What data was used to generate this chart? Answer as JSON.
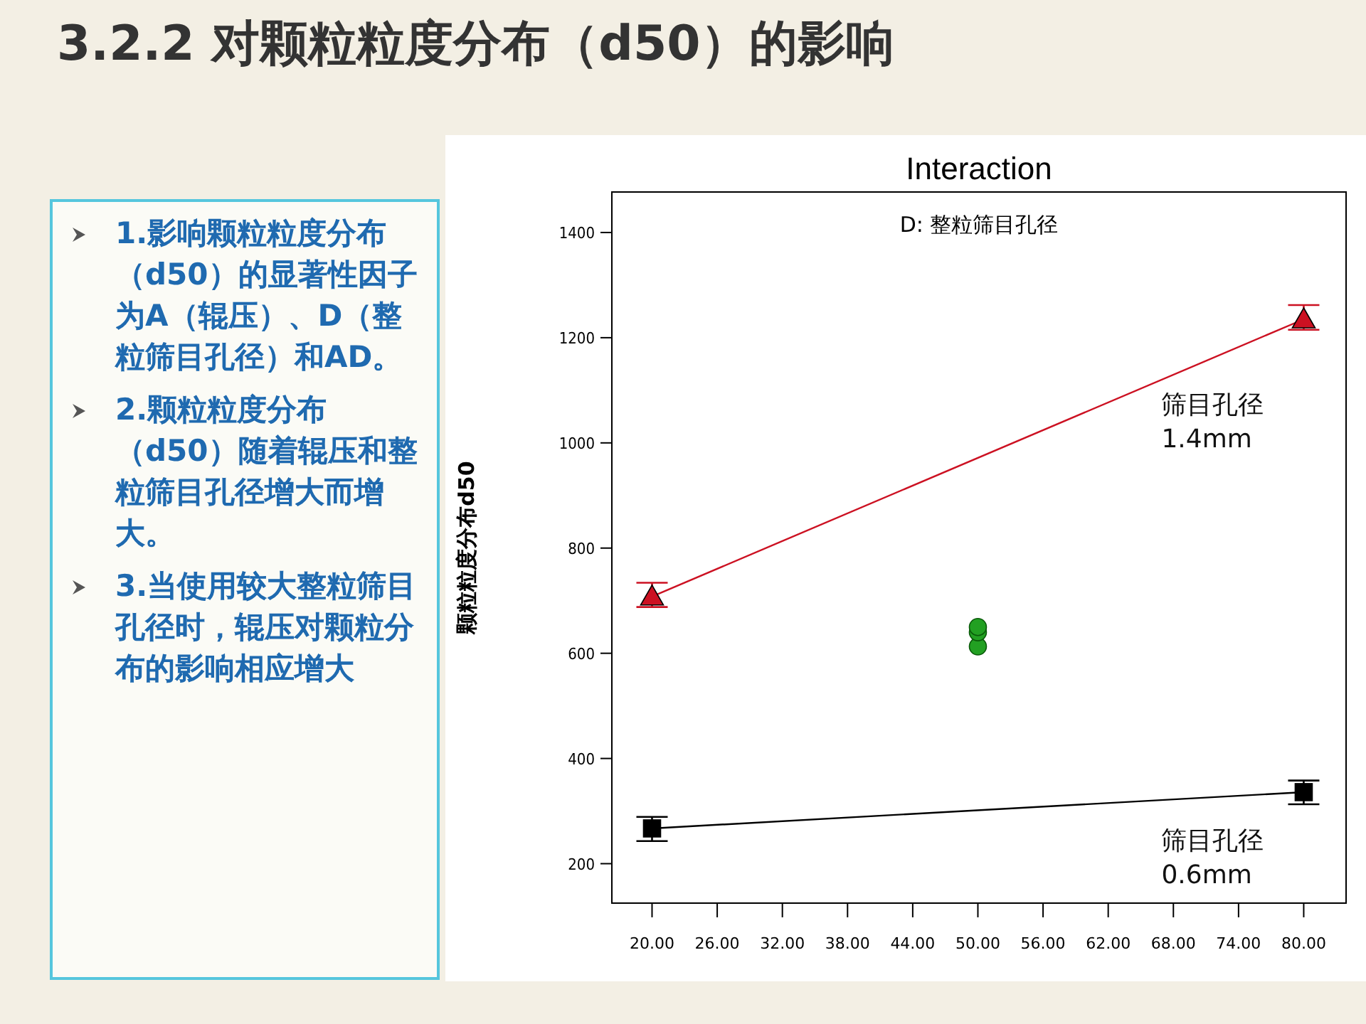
{
  "chart_data": {
    "type": "line",
    "title": "3.2.2 对颗粒粒度分布（d50）的影响",
    "subtitle": "Interaction",
    "legend_title": "D: 整粒筛目孔径",
    "ylabel": "颗粒粒度分布d50",
    "annotations": [
      "1.影响颗粒粒度分布（d50）的显著性因子为A（辊压）、D（整粒筛目孔径）和AD。",
      "2.颗粒粒度分布（d50）随着辊压和整粒筛目孔径增大而增大。",
      "3.当使用较大整粒筛目孔径时，辊压对颗粒分布的影响相应增大"
    ],
    "series": [
      {
        "name": "筛目孔径 1.4mm",
        "color": "#cc1122",
        "marker": "triangle",
        "x": [
          20,
          80
        ],
        "values": [
          708,
          1235
        ],
        "errors": [
          [
            688,
            734
          ],
          [
            1215,
            1262
          ]
        ]
      },
      {
        "name": "筛目孔径 0.6mm",
        "color": "#000000",
        "marker": "square",
        "x": [
          20,
          80
        ],
        "values": [
          267,
          336
        ],
        "errors": [
          [
            243,
            289
          ],
          [
            313,
            358
          ]
        ]
      },
      {
        "type": "scatter",
        "color": "#22a022",
        "marker": "circle",
        "x": [
          50,
          50,
          50
        ],
        "values": [
          650,
          640,
          613
        ]
      }
    ],
    "xlim": [
      16.3,
      83.9
    ],
    "xticks": [
      {
        "value": 20,
        "label": "20.00"
      },
      {
        "value": 26,
        "label": "26.00"
      },
      {
        "value": 32,
        "label": "32.00"
      },
      {
        "value": 38,
        "label": "38.00"
      },
      {
        "value": 44,
        "label": "44.00"
      },
      {
        "value": 50,
        "label": "50.00"
      },
      {
        "value": 56,
        "label": "56.00"
      },
      {
        "value": 62,
        "label": "62.00"
      },
      {
        "value": 68,
        "label": "68.00"
      },
      {
        "value": 74,
        "label": "74.00"
      },
      {
        "value": 80,
        "label": "80.00"
      }
    ],
    "ylim": [
      125,
      1477
    ],
    "yticks": [
      200,
      400,
      600,
      800,
      1000,
      1200,
      1400
    ],
    "grid": false,
    "line_style": "solid"
  }
}
